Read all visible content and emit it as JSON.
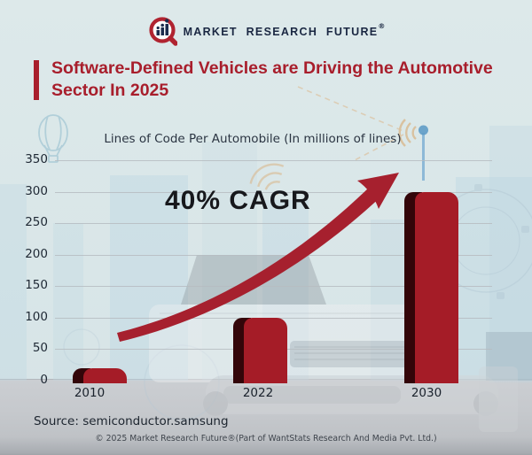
{
  "header": {
    "brand": "MARKET RESEARCH FUTURE",
    "registered": "®"
  },
  "title": {
    "lines": [
      "Software-Defined Vehicles are Driving the Automotive",
      "Sector In 2025"
    ]
  },
  "chart_data": {
    "type": "bar",
    "title": "Lines of Code Per Automobile (In millions of lines)",
    "categories": [
      "2010",
      "2022",
      "2030"
    ],
    "values": [
      20,
      100,
      300
    ],
    "ylim": [
      0,
      350
    ],
    "yticks": [
      0,
      50,
      100,
      150,
      200,
      250,
      300,
      350
    ],
    "grid": true,
    "legend": false,
    "annotation": "40% CAGR",
    "bar_color": "#a51c27",
    "bar_shade_color": "#330509",
    "arrow_color": "#a6202e"
  },
  "source": {
    "text": "Source: semiconductor.samsung"
  },
  "footer": {
    "text": "© 2025 Market Research Future®(Part of WantStats Research And Media Pvt. Ltd.)"
  },
  "colors": {
    "background": "#dce9ea",
    "title_red": "#a81e2c",
    "text_navy": "#1e2834",
    "road_gray": "#c6c9cd"
  }
}
